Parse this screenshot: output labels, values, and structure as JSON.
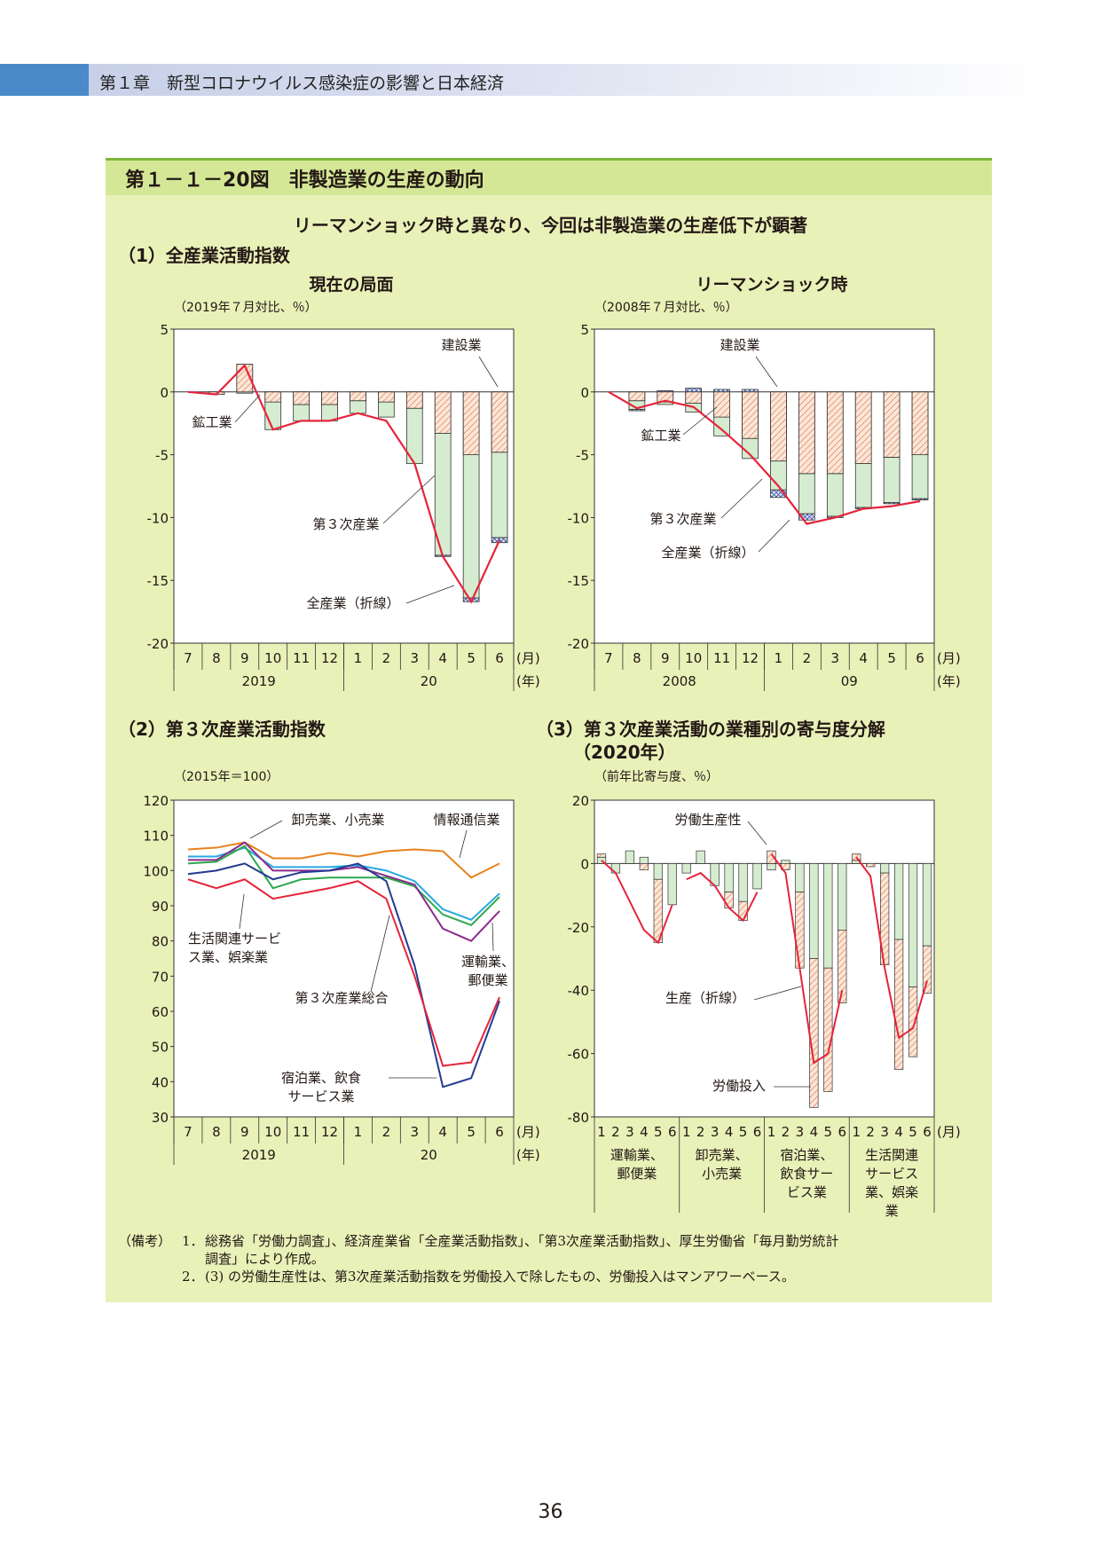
{
  "header": {
    "chapter": "第１章　新型コロナウイルス感染症の影響と日本経済"
  },
  "figure": {
    "title": "第１－１－20図　非製造業の生産の動向",
    "subtitle": "リーマンショック時と異なり、今回は非製造業の生産低下が顕著",
    "section1_title": "（1）全産業活動指数",
    "section2_title": "（2）第３次産業活動指数",
    "section3_title_line1": "（3）第３次産業活動の業種別の寄与度分解",
    "section3_title_line2": "（2020年）",
    "panel1a_title": "現在の局面",
    "panel1b_title": "リーマンショック時",
    "panel1a_unit": "（2019年７月対比、％）",
    "panel1b_unit": "（2008年７月対比、％）",
    "panel2_unit": "（2015年＝100）",
    "panel3_unit": "（前年比寄与度、％）"
  },
  "chart_data": [
    {
      "id": "current",
      "type": "bar",
      "title": "現在の局面",
      "ylabel": "（2019年７月対比、％）",
      "ylim": [
        -20,
        5
      ],
      "yticks": [
        5,
        0,
        -5,
        -10,
        -15,
        -20
      ],
      "categories": [
        "7",
        "8",
        "9",
        "10",
        "11",
        "12",
        "1",
        "2",
        "3",
        "4",
        "5",
        "6"
      ],
      "year_labels": [
        "2019",
        "20"
      ],
      "x_unit": "(月)",
      "year_unit": "(年)",
      "series": [
        {
          "name": "建設業",
          "values": [
            0,
            0,
            0,
            0,
            0,
            0,
            0,
            0,
            0,
            -0.1,
            -0.3,
            -0.4
          ]
        },
        {
          "name": "鉱工業",
          "values": [
            0,
            -0.2,
            2.2,
            -0.8,
            -1.0,
            -1.0,
            -0.7,
            -0.8,
            -1.3,
            -3.3,
            -5.0,
            -4.8
          ]
        },
        {
          "name": "第３次産業",
          "values": [
            0,
            0,
            -0.1,
            -2.2,
            -1.3,
            -1.3,
            -1.0,
            -1.2,
            -4.4,
            -9.7,
            -11.4,
            -6.8
          ]
        },
        {
          "name": "全産業（折線）",
          "values": [
            0,
            -0.2,
            2.1,
            -3.0,
            -2.3,
            -2.3,
            -1.7,
            -2.3,
            -5.7,
            -13.1,
            -16.7,
            -11.8
          ]
        }
      ],
      "labels": {
        "construction": "建設業",
        "mining": "鉱工業",
        "tertiary": "第３次産業",
        "total": "全産業（折線）"
      }
    },
    {
      "id": "lehman",
      "type": "bar",
      "title": "リーマンショック時",
      "ylabel": "（2008年７月対比、％）",
      "ylim": [
        -20,
        5
      ],
      "yticks": [
        5,
        0,
        -5,
        -10,
        -15,
        -20
      ],
      "categories": [
        "7",
        "8",
        "9",
        "10",
        "11",
        "12",
        "1",
        "2",
        "3",
        "4",
        "5",
        "6"
      ],
      "year_labels": [
        "2008",
        "09"
      ],
      "x_unit": "(月)",
      "year_unit": "(年)",
      "series": [
        {
          "name": "建設業",
          "values": [
            0,
            -0.1,
            0.1,
            0.3,
            0.2,
            0.2,
            -0.6,
            -0.5,
            -0.1,
            -0.1,
            -0.1,
            -0.1
          ]
        },
        {
          "name": "鉱工業",
          "values": [
            0,
            -0.7,
            -0.8,
            -0.9,
            -2.0,
            -3.7,
            -5.5,
            -6.5,
            -6.5,
            -5.7,
            -5.2,
            -5.0
          ]
        },
        {
          "name": "第３次産業",
          "values": [
            0,
            -0.7,
            -0.2,
            -0.7,
            -1.5,
            -1.6,
            -2.3,
            -3.2,
            -3.4,
            -3.5,
            -3.6,
            -3.5
          ]
        },
        {
          "name": "全産業（折線）",
          "values": [
            0,
            -1.3,
            -0.7,
            -1.2,
            -3.0,
            -5.0,
            -7.5,
            -10.5,
            -10.0,
            -9.3,
            -9.1,
            -8.7
          ]
        }
      ],
      "labels": {
        "construction": "建設業",
        "mining": "鉱工業",
        "tertiary": "第３次産業",
        "total": "全産業（折線）"
      }
    },
    {
      "id": "tertiary",
      "type": "line",
      "ylabel": "（2015年＝100）",
      "ylim": [
        30,
        120
      ],
      "yticks": [
        120,
        110,
        100,
        90,
        80,
        70,
        60,
        50,
        40,
        30
      ],
      "categories": [
        "7",
        "8",
        "9",
        "10",
        "11",
        "12",
        "1",
        "2",
        "3",
        "4",
        "5",
        "6"
      ],
      "year_labels": [
        "2019",
        "20"
      ],
      "x_unit": "(月)",
      "year_unit": "(年)",
      "series": [
        {
          "name": "情報通信業",
          "color": "#e8821e",
          "values": [
            106,
            106.5,
            108,
            103.5,
            103.5,
            105,
            104,
            105.5,
            106,
            105.5,
            98,
            102
          ]
        },
        {
          "name": "卸売業、小売業",
          "color": "#27a9e0",
          "values": [
            104,
            104,
            106.5,
            101,
            101,
            101,
            101.5,
            100,
            97,
            89,
            86,
            93.5
          ]
        },
        {
          "name": "運輸業、郵便業",
          "color": "#2fa84f",
          "values": [
            102,
            102.5,
            107,
            95,
            97.5,
            98,
            98,
            98,
            95.5,
            87.5,
            84.5,
            92.5
          ]
        },
        {
          "name": "第３次産業総合",
          "color": "#8b2b8b",
          "values": [
            103,
            103,
            108,
            100,
            100,
            100,
            101,
            98.5,
            96,
            83.5,
            80,
            88.5
          ]
        },
        {
          "name": "生活関連サービス業、娯楽業",
          "color": "#223b8f",
          "values": [
            99,
            100,
            102,
            97.5,
            99.5,
            100,
            102,
            97,
            73,
            38.5,
            41,
            63
          ]
        },
        {
          "name": "宿泊業、飲食サービス業",
          "color": "#e5243b",
          "values": [
            97.5,
            95,
            97.5,
            92,
            93.5,
            95,
            97,
            92,
            70,
            44.5,
            45.5,
            64
          ]
        }
      ]
    },
    {
      "id": "decomp",
      "type": "bar",
      "ylabel": "（前年比寄与度、％）",
      "ylim": [
        -80,
        20
      ],
      "yticks": [
        20,
        0,
        -20,
        -40,
        -60,
        -80
      ],
      "month_labels": [
        "1",
        "2",
        "3",
        "4",
        "5",
        "6"
      ],
      "x_unit": "(月)",
      "groups": [
        {
          "name": "運輸業、郵便業",
          "productivity": [
            1,
            0,
            0,
            -2,
            -20,
            0
          ],
          "labor": [
            2,
            -3,
            4,
            2,
            -5,
            -13
          ],
          "production": [
            1,
            -3,
            -12,
            -21,
            -25,
            -13
          ]
        },
        {
          "name": "卸売業、小売業",
          "productivity": [
            0,
            0,
            0,
            -5,
            -6,
            0
          ],
          "labor": [
            -3,
            4,
            -7,
            -9,
            -12,
            -8
          ],
          "production": [
            -5,
            -3,
            -7,
            -14,
            -18,
            -9
          ]
        },
        {
          "name": "宿泊業、飲食サービス業",
          "productivity": [
            4,
            -2,
            -24,
            -47,
            -39,
            -23
          ],
          "labor": [
            -2,
            1,
            -9,
            -30,
            -33,
            -21
          ],
          "production": [
            3,
            -3,
            -33,
            -63,
            -60,
            -40
          ]
        },
        {
          "name": "生活関連サービス業、娯楽業",
          "productivity": [
            2,
            -1,
            -29,
            -41,
            -22,
            -15
          ],
          "labor": [
            1,
            0,
            -3,
            -24,
            -39,
            -26
          ],
          "production": [
            2,
            -4,
            -33,
            -55,
            -52,
            -37
          ]
        }
      ],
      "group_labels": [
        [
          "運輸業、",
          "郵便業"
        ],
        [
          "卸売業、",
          "小売業"
        ],
        [
          "宿泊業、",
          "飲食サー",
          "ビス業"
        ],
        [
          "生活関連",
          "サービス",
          "業、娯楽",
          "業"
        ]
      ],
      "labels": {
        "productivity": "労働生産性",
        "production": "生産（折線）",
        "labor": "労働投入"
      }
    }
  ],
  "notes": {
    "head": "（備考）",
    "n1": "1．",
    "n1_line1": "総務省「労働力調査」、経済産業省「全産業活動指数」、「第3次産業活動指数」、厚生労働省「毎月勤労統計",
    "n1_line2": "調査」により作成。",
    "n2": "2．",
    "n2_line1": "(3) の労働生産性は、第3次産業活動指数を労働投入で除したもの、労働投入はマンアワーベース。"
  },
  "page_number": "36"
}
